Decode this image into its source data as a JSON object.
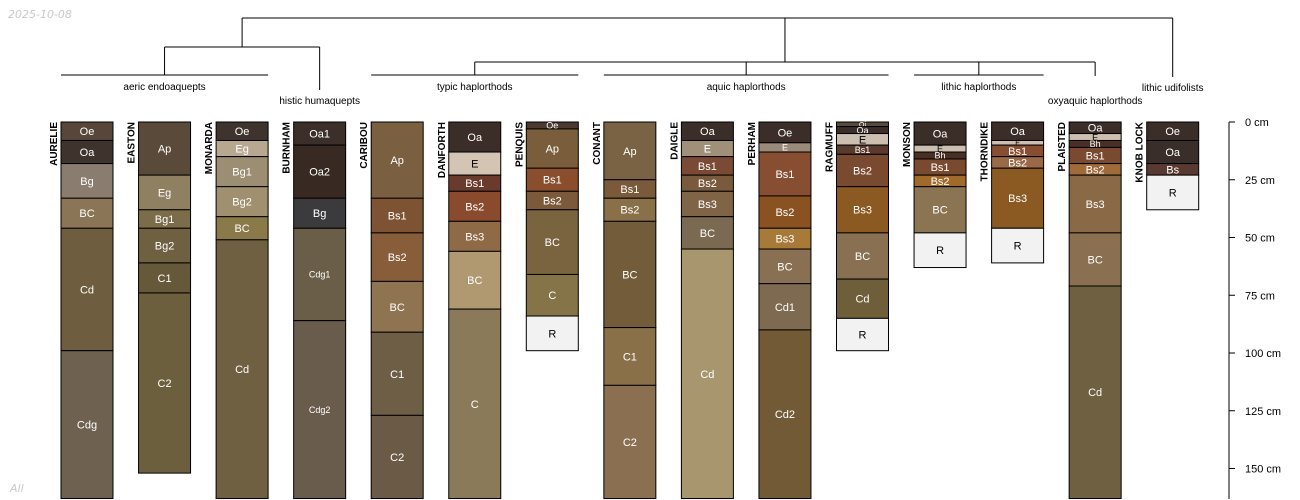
{
  "date_stamp": "2025-10-08",
  "corner_label": "All",
  "chart_data": {
    "type": "soil_profile_sketch",
    "depth_axis": {
      "unit": "cm",
      "ticks": [
        0,
        25,
        50,
        75,
        100,
        125,
        150
      ],
      "tick_labels": [
        "0 cm",
        "25 cm",
        "50 cm",
        "75 cm",
        "100 cm",
        "125 cm",
        "150 cm"
      ],
      "range": [
        0,
        163
      ]
    },
    "groups": [
      {
        "name": "aeric endoaquepts",
        "profiles": [
          "AURELIE",
          "EASTON",
          "MONARDA"
        ]
      },
      {
        "name": "histic humaquepts",
        "profiles": [
          "BURNHAM"
        ]
      },
      {
        "name": "typic haplorthods",
        "profiles": [
          "CARIBOU",
          "DANFORTH",
          "PENQUIS"
        ]
      },
      {
        "name": "aquic haplorthods",
        "profiles": [
          "CONANT",
          "DAIGLE",
          "PERHAM",
          "RAGMUFF"
        ]
      },
      {
        "name": "lithic haplorthods",
        "profiles": [
          "MONSON",
          "THORNDIKE"
        ]
      },
      {
        "name": "oxyaquic haplorthods",
        "profiles": [
          "PLAISTED"
        ]
      },
      {
        "name": "lithic udifolists",
        "profiles": [
          "KNOB LOCK"
        ]
      }
    ],
    "profiles": [
      {
        "name": "AURELIE",
        "horizons": [
          {
            "name": "Oe",
            "top": 0,
            "bottom": 8,
            "color": "#57463a"
          },
          {
            "name": "Oa",
            "top": 8,
            "bottom": 18,
            "color": "#3e342d"
          },
          {
            "name": "Bg",
            "top": 18,
            "bottom": 33,
            "color": "#8a7c6e"
          },
          {
            "name": "BC",
            "top": 33,
            "bottom": 46,
            "color": "#8a7556"
          },
          {
            "name": "Cd",
            "top": 46,
            "bottom": 99,
            "color": "#6e5d3e"
          },
          {
            "name": "Cdg",
            "top": 99,
            "bottom": 163,
            "color": "#6e6150"
          }
        ]
      },
      {
        "name": "EASTON",
        "horizons": [
          {
            "name": "Ap",
            "top": 0,
            "bottom": 23,
            "color": "#5a4a3a"
          },
          {
            "name": "Eg",
            "top": 23,
            "bottom": 38,
            "color": "#8e8060"
          },
          {
            "name": "Bg1",
            "top": 38,
            "bottom": 46,
            "color": "#7b6d4a"
          },
          {
            "name": "Bg2",
            "top": 46,
            "bottom": 61,
            "color": "#6e6040"
          },
          {
            "name": "C1",
            "top": 61,
            "bottom": 74,
            "color": "#66593a"
          },
          {
            "name": "C2",
            "top": 74,
            "bottom": 152,
            "color": "#6c5f3e"
          }
        ]
      },
      {
        "name": "MONARDA",
        "horizons": [
          {
            "name": "Oe",
            "top": 0,
            "bottom": 8,
            "color": "#3e342d"
          },
          {
            "name": "Eg",
            "top": 8,
            "bottom": 15,
            "color": "#b9a890"
          },
          {
            "name": "Bg1",
            "top": 15,
            "bottom": 28,
            "color": "#9c8e72"
          },
          {
            "name": "Bg2",
            "top": 28,
            "bottom": 41,
            "color": "#a09070"
          },
          {
            "name": "BC",
            "top": 41,
            "bottom": 51,
            "color": "#8a7a4a"
          },
          {
            "name": "Cd",
            "top": 51,
            "bottom": 163,
            "color": "#6e6040"
          }
        ]
      },
      {
        "name": "BURNHAM",
        "horizons": [
          {
            "name": "Oa1",
            "top": 0,
            "bottom": 10,
            "color": "#3c2f29"
          },
          {
            "name": "Oa2",
            "top": 10,
            "bottom": 33,
            "color": "#382a22"
          },
          {
            "name": "Bg",
            "top": 33,
            "bottom": 46,
            "color": "#3b3b3d"
          },
          {
            "name": "Cdg1",
            "top": 46,
            "bottom": 86,
            "color": "#6a5e48"
          },
          {
            "name": "Cdg2",
            "top": 86,
            "bottom": 163,
            "color": "#6a5c4c"
          }
        ]
      },
      {
        "name": "CARIBOU",
        "horizons": [
          {
            "name": "Ap",
            "top": 0,
            "bottom": 33,
            "color": "#7a6040"
          },
          {
            "name": "Bs1",
            "top": 33,
            "bottom": 48,
            "color": "#7e5334"
          },
          {
            "name": "Bs2",
            "top": 48,
            "bottom": 69,
            "color": "#885e3a"
          },
          {
            "name": "BC",
            "top": 69,
            "bottom": 91,
            "color": "#8e7450"
          },
          {
            "name": "C1",
            "top": 91,
            "bottom": 127,
            "color": "#6e5e46"
          },
          {
            "name": "C2",
            "top": 127,
            "bottom": 163,
            "color": "#6a5a46"
          }
        ]
      },
      {
        "name": "DANFORTH",
        "horizons": [
          {
            "name": "Oa",
            "top": 0,
            "bottom": 13,
            "color": "#3b2d27"
          },
          {
            "name": "E",
            "top": 13,
            "bottom": 23,
            "color": "#d4c4b4"
          },
          {
            "name": "Bs1",
            "top": 23,
            "bottom": 30,
            "color": "#6a3a2c"
          },
          {
            "name": "Bs2",
            "top": 30,
            "bottom": 43,
            "color": "#8a4a2e"
          },
          {
            "name": "Bs3",
            "top": 43,
            "bottom": 56,
            "color": "#8e6a46"
          },
          {
            "name": "BC",
            "top": 56,
            "bottom": 81,
            "color": "#b09870"
          },
          {
            "name": "C",
            "top": 81,
            "bottom": 163,
            "color": "#8a7a5a"
          }
        ]
      },
      {
        "name": "PENQUIS",
        "horizons": [
          {
            "name": "Oe",
            "top": 0,
            "bottom": 3,
            "color": "#4a3a30"
          },
          {
            "name": "Ap",
            "top": 3,
            "bottom": 20,
            "color": "#7a5e3c"
          },
          {
            "name": "Bs1",
            "top": 20,
            "bottom": 30,
            "color": "#8a4e2c"
          },
          {
            "name": "Bs2",
            "top": 30,
            "bottom": 38,
            "color": "#7a5a3a"
          },
          {
            "name": "BC",
            "top": 38,
            "bottom": 66,
            "color": "#7a6440"
          },
          {
            "name": "C",
            "top": 66,
            "bottom": 84,
            "color": "#847448"
          },
          {
            "name": "R",
            "top": 84,
            "bottom": 99,
            "color": "#f2f2f2"
          }
        ]
      },
      {
        "name": "CONANT",
        "horizons": [
          {
            "name": "Ap",
            "top": 0,
            "bottom": 25,
            "color": "#7a6244"
          },
          {
            "name": "Bs1",
            "top": 25,
            "bottom": 33,
            "color": "#7a5a3a"
          },
          {
            "name": "Bs2",
            "top": 33,
            "bottom": 43,
            "color": "#8a7048"
          },
          {
            "name": "BC",
            "top": 43,
            "bottom": 89,
            "color": "#735c3a"
          },
          {
            "name": "C1",
            "top": 89,
            "bottom": 114,
            "color": "#8a7048"
          },
          {
            "name": "C2",
            "top": 114,
            "bottom": 163,
            "color": "#8a7050"
          }
        ]
      },
      {
        "name": "DAIGLE",
        "horizons": [
          {
            "name": "Oa",
            "top": 0,
            "bottom": 8,
            "color": "#3b2d27"
          },
          {
            "name": "E",
            "top": 8,
            "bottom": 15,
            "color": "#a0907a"
          },
          {
            "name": "Bs1",
            "top": 15,
            "bottom": 23,
            "color": "#7a4a34"
          },
          {
            "name": "Bs2",
            "top": 23,
            "bottom": 30,
            "color": "#7a5a3c"
          },
          {
            "name": "Bs3",
            "top": 30,
            "bottom": 41,
            "color": "#806446"
          },
          {
            "name": "BC",
            "top": 41,
            "bottom": 55,
            "color": "#7a6a52"
          },
          {
            "name": "Cd",
            "top": 55,
            "bottom": 163,
            "color": "#a8966e"
          }
        ]
      },
      {
        "name": "PERHAM",
        "horizons": [
          {
            "name": "Oe",
            "top": 0,
            "bottom": 9,
            "color": "#3b2d27"
          },
          {
            "name": "E",
            "top": 9,
            "bottom": 13,
            "color": "#9a8a7a"
          },
          {
            "name": "Bs1",
            "top": 13,
            "bottom": 32,
            "color": "#884e32"
          },
          {
            "name": "Bs2",
            "top": 32,
            "bottom": 46,
            "color": "#8a5220"
          },
          {
            "name": "Bs3",
            "top": 46,
            "bottom": 55,
            "color": "#a87a38"
          },
          {
            "name": "BC",
            "top": 55,
            "bottom": 70,
            "color": "#8a7052"
          },
          {
            "name": "Cd1",
            "top": 70,
            "bottom": 90,
            "color": "#7e6a50"
          },
          {
            "name": "Cd2",
            "top": 90,
            "bottom": 163,
            "color": "#735a36"
          }
        ]
      },
      {
        "name": "RAGMUFF",
        "horizons": [
          {
            "name": "Oi",
            "top": 0,
            "bottom": 2,
            "color": "#5a4a3a"
          },
          {
            "name": "Oa",
            "top": 2,
            "bottom": 5,
            "color": "#3b2d27"
          },
          {
            "name": "E",
            "top": 5,
            "bottom": 10,
            "color": "#cdbfb0"
          },
          {
            "name": "Bs1",
            "top": 10,
            "bottom": 14,
            "color": "#5a3a2c"
          },
          {
            "name": "Bs2",
            "top": 14,
            "bottom": 28,
            "color": "#7a4a30"
          },
          {
            "name": "Bs3",
            "top": 28,
            "bottom": 48,
            "color": "#8a5a22"
          },
          {
            "name": "BC",
            "top": 48,
            "bottom": 68,
            "color": "#8a7052"
          },
          {
            "name": "Cd",
            "top": 68,
            "bottom": 85,
            "color": "#6e5e3a"
          },
          {
            "name": "R",
            "top": 85,
            "bottom": 99,
            "color": "#f2f2f2"
          }
        ]
      },
      {
        "name": "MONSON",
        "horizons": [
          {
            "name": "Oa",
            "top": 0,
            "bottom": 10,
            "color": "#3b2d27"
          },
          {
            "name": "E",
            "top": 10,
            "bottom": 13,
            "color": "#cdbfb0"
          },
          {
            "name": "Bh",
            "top": 13,
            "bottom": 16,
            "color": "#4a3024"
          },
          {
            "name": "Bs1",
            "top": 16,
            "bottom": 23,
            "color": "#7a4a30"
          },
          {
            "name": "Bs2",
            "top": 23,
            "bottom": 28,
            "color": "#a06a2a"
          },
          {
            "name": "BC",
            "top": 28,
            "bottom": 48,
            "color": "#8a7452"
          },
          {
            "name": "R",
            "top": 48,
            "bottom": 63,
            "color": "#f2f2f2"
          }
        ]
      },
      {
        "name": "THORNDIKE",
        "horizons": [
          {
            "name": "Oa",
            "top": 0,
            "bottom": 8,
            "color": "#3b2d27"
          },
          {
            "name": "E",
            "top": 8,
            "bottom": 10,
            "color": "#cdbfb0"
          },
          {
            "name": "Bs1",
            "top": 10,
            "bottom": 15,
            "color": "#884e32"
          },
          {
            "name": "Bs2",
            "top": 15,
            "bottom": 20,
            "color": "#9a6a48"
          },
          {
            "name": "Bs3",
            "top": 20,
            "bottom": 46,
            "color": "#8a5a22"
          },
          {
            "name": "R",
            "top": 46,
            "bottom": 61,
            "color": "#f2f2f2"
          }
        ]
      },
      {
        "name": "PLAISTED",
        "horizons": [
          {
            "name": "Oa",
            "top": 0,
            "bottom": 5,
            "color": "#3b2d27"
          },
          {
            "name": "E",
            "top": 5,
            "bottom": 8,
            "color": "#cdbfb0"
          },
          {
            "name": "Bh",
            "top": 8,
            "bottom": 11,
            "color": "#4a3024"
          },
          {
            "name": "Bs1",
            "top": 11,
            "bottom": 18,
            "color": "#7a4a30"
          },
          {
            "name": "Bs2",
            "top": 18,
            "bottom": 23,
            "color": "#a06a3a"
          },
          {
            "name": "Bs3",
            "top": 23,
            "bottom": 48,
            "color": "#8a6a46"
          },
          {
            "name": "BC",
            "top": 48,
            "bottom": 71,
            "color": "#8a7050"
          },
          {
            "name": "Cd",
            "top": 71,
            "bottom": 163,
            "color": "#6e6040"
          }
        ]
      },
      {
        "name": "KNOB LOCK",
        "horizons": [
          {
            "name": "Oe",
            "top": 0,
            "bottom": 8,
            "color": "#3b2d27"
          },
          {
            "name": "Oa",
            "top": 8,
            "bottom": 18,
            "color": "#3a2e2a"
          },
          {
            "name": "Bs",
            "top": 18,
            "bottom": 23,
            "color": "#5a3a30"
          },
          {
            "name": "R",
            "top": 23,
            "bottom": 38,
            "color": "#f2f2f2"
          }
        ]
      }
    ]
  }
}
